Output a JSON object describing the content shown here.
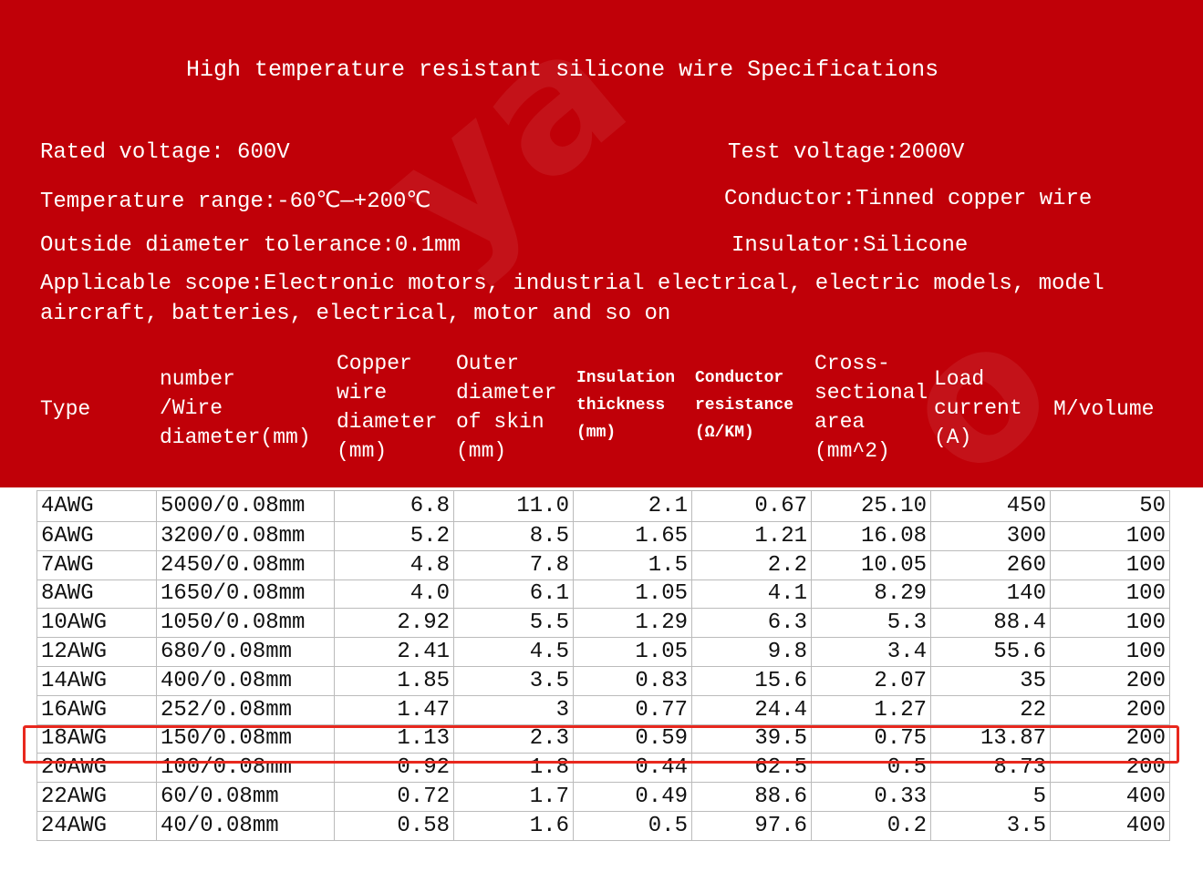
{
  "title": "High temperature resistant silicone wire Specifications",
  "specs": {
    "rated_voltage": "Rated voltage: 600V",
    "test_voltage": "Test voltage:2000V",
    "temperature_range": "Temperature range:-60℃—+200℃",
    "conductor": "Conductor:Tinned copper wire",
    "diameter_tolerance": "Outside diameter tolerance:0.1mm",
    "insulator": "Insulator:Silicone",
    "scope_line1": "Applicable scope:Electronic motors, industrial electrical, electric models, model",
    "scope_line2": "aircraft, batteries, electrical, motor and so on"
  },
  "headers": [
    [
      "Type"
    ],
    [
      "number",
      "/Wire",
      "diameter(mm)"
    ],
    [
      "Copper",
      "wire",
      "diameter",
      "(mm)"
    ],
    [
      "Outer",
      "diameter",
      "of skin",
      "(mm)"
    ],
    [
      "Insulation",
      "thickness",
      "(mm)"
    ],
    [
      "Conductor",
      "resistance",
      "(Ω/KM)"
    ],
    [
      "Cross-",
      "sectional",
      "area",
      "(mm^2)"
    ],
    [
      "Load",
      "current",
      "(A)"
    ],
    [
      "M/volume"
    ]
  ],
  "rows": [
    [
      "4AWG",
      "5000/0.08mm",
      "6.8",
      "11.0",
      "2.1",
      "0.67",
      "25.10",
      "450",
      "50"
    ],
    [
      "6AWG",
      "3200/0.08mm",
      "5.2",
      "8.5",
      "1.65",
      "1.21",
      "16.08",
      "300",
      "100"
    ],
    [
      "7AWG",
      "2450/0.08mm",
      "4.8",
      "7.8",
      "1.5",
      "2.2",
      "10.05",
      "260",
      "100"
    ],
    [
      "8AWG",
      "1650/0.08mm",
      "4.0",
      "6.1",
      "1.05",
      "4.1",
      "8.29",
      "140",
      "100"
    ],
    [
      "10AWG",
      "1050/0.08mm",
      "2.92",
      "5.5",
      "1.29",
      "6.3",
      "5.3",
      "88.4",
      "100"
    ],
    [
      "12AWG",
      "680/0.08mm",
      "2.41",
      "4.5",
      "1.05",
      "9.8",
      "3.4",
      "55.6",
      "100"
    ],
    [
      "14AWG",
      "400/0.08mm",
      "1.85",
      "3.5",
      "0.83",
      "15.6",
      "2.07",
      "35",
      "200"
    ],
    [
      "16AWG",
      "252/0.08mm",
      "1.47",
      "3",
      "0.77",
      "24.4",
      "1.27",
      "22",
      "200"
    ],
    [
      "18AWG",
      "150/0.08mm",
      "1.13",
      "2.3",
      "0.59",
      "39.5",
      "0.75",
      "13.87",
      "200"
    ],
    [
      "20AWG",
      "100/0.08mm",
      "0.92",
      "1.8",
      "0.44",
      "62.5",
      "0.5",
      "8.73",
      "200"
    ],
    [
      "22AWG",
      "60/0.08mm",
      "0.72",
      "1.7",
      "0.49",
      "88.6",
      "0.33",
      "5",
      "400"
    ],
    [
      "24AWG",
      "40/0.08mm",
      "0.58",
      "1.6",
      "0.5",
      "97.6",
      "0.2",
      "3.5",
      "400"
    ]
  ],
  "highlighted_row": "18AWG",
  "colors": {
    "background": "#c00008",
    "highlight": "#e8281e"
  }
}
